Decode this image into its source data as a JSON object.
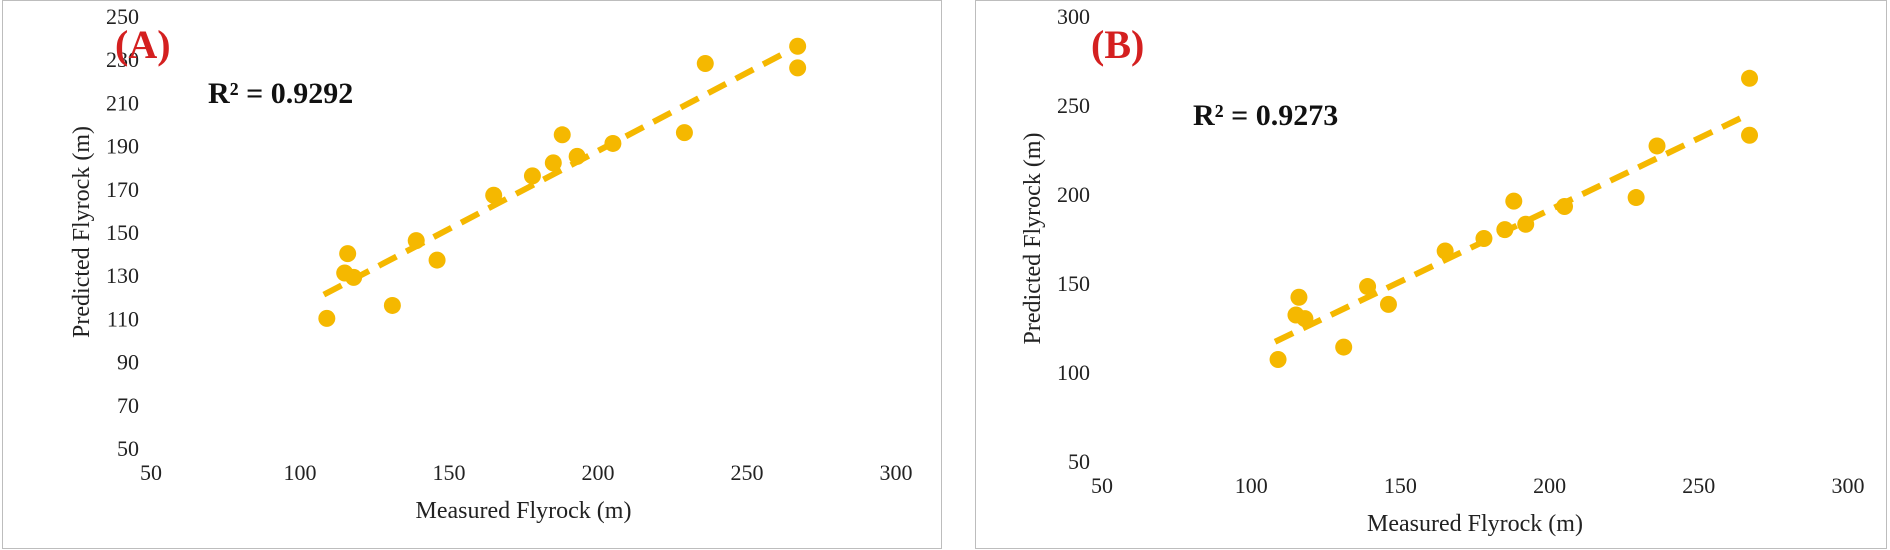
{
  "colors": {
    "marker": "#f5b800",
    "trendline": "#f5b800",
    "panel_label": "#d42020",
    "axis": "#777777",
    "text": "#222222"
  },
  "chart_data": [
    {
      "type": "scatter",
      "panel_label": "(A)",
      "annotation": "R² = 0.9292",
      "xlabel": "Measured Flyrock  (m)",
      "ylabel": "Predicted Flyrock  (m)",
      "xlim": [
        50,
        300
      ],
      "ylim": [
        50,
        250
      ],
      "xticks": [
        "50",
        "100",
        "150",
        "200",
        "250",
        "300"
      ],
      "yticks": [
        "50",
        "70",
        "90",
        "110",
        "130",
        "150",
        "170",
        "190",
        "210",
        "230",
        "250"
      ],
      "grid": false,
      "legend": "none",
      "trendline": {
        "type": "linear",
        "style": "dashed",
        "x": [
          108,
          267
        ],
        "y": [
          121,
          236
        ]
      },
      "points": [
        {
          "x": 109,
          "y": 110
        },
        {
          "x": 115,
          "y": 131
        },
        {
          "x": 116,
          "y": 140
        },
        {
          "x": 118,
          "y": 129
        },
        {
          "x": 131,
          "y": 116
        },
        {
          "x": 139,
          "y": 146
        },
        {
          "x": 146,
          "y": 137
        },
        {
          "x": 165,
          "y": 167
        },
        {
          "x": 178,
          "y": 176
        },
        {
          "x": 185,
          "y": 182
        },
        {
          "x": 188,
          "y": 195
        },
        {
          "x": 193,
          "y": 185
        },
        {
          "x": 205,
          "y": 191
        },
        {
          "x": 229,
          "y": 196
        },
        {
          "x": 236,
          "y": 228
        },
        {
          "x": 267,
          "y": 226
        },
        {
          "x": 267,
          "y": 236
        }
      ]
    },
    {
      "type": "scatter",
      "panel_label": "(B)",
      "annotation": "R² = 0.9273",
      "xlabel": "Measured Flyrock  (m)",
      "ylabel": "Predicted Flyrock  (m)",
      "xlim": [
        50,
        300
      ],
      "ylim": [
        50,
        300
      ],
      "xticks": [
        "50",
        "100",
        "150",
        "200",
        "250",
        "300"
      ],
      "yticks": [
        "50",
        "100",
        "150",
        "200",
        "250",
        "300"
      ],
      "grid": false,
      "legend": "none",
      "trendline": {
        "type": "linear",
        "style": "dashed",
        "x": [
          108,
          267
        ],
        "y": [
          117,
          245
        ]
      },
      "points": [
        {
          "x": 109,
          "y": 107
        },
        {
          "x": 115,
          "y": 132
        },
        {
          "x": 116,
          "y": 142
        },
        {
          "x": 118,
          "y": 130
        },
        {
          "x": 131,
          "y": 114
        },
        {
          "x": 139,
          "y": 148
        },
        {
          "x": 146,
          "y": 138
        },
        {
          "x": 165,
          "y": 168
        },
        {
          "x": 178,
          "y": 175
        },
        {
          "x": 185,
          "y": 180
        },
        {
          "x": 188,
          "y": 196
        },
        {
          "x": 192,
          "y": 183
        },
        {
          "x": 205,
          "y": 193
        },
        {
          "x": 229,
          "y": 198
        },
        {
          "x": 236,
          "y": 227
        },
        {
          "x": 267,
          "y": 233
        },
        {
          "x": 267,
          "y": 265
        }
      ]
    }
  ]
}
